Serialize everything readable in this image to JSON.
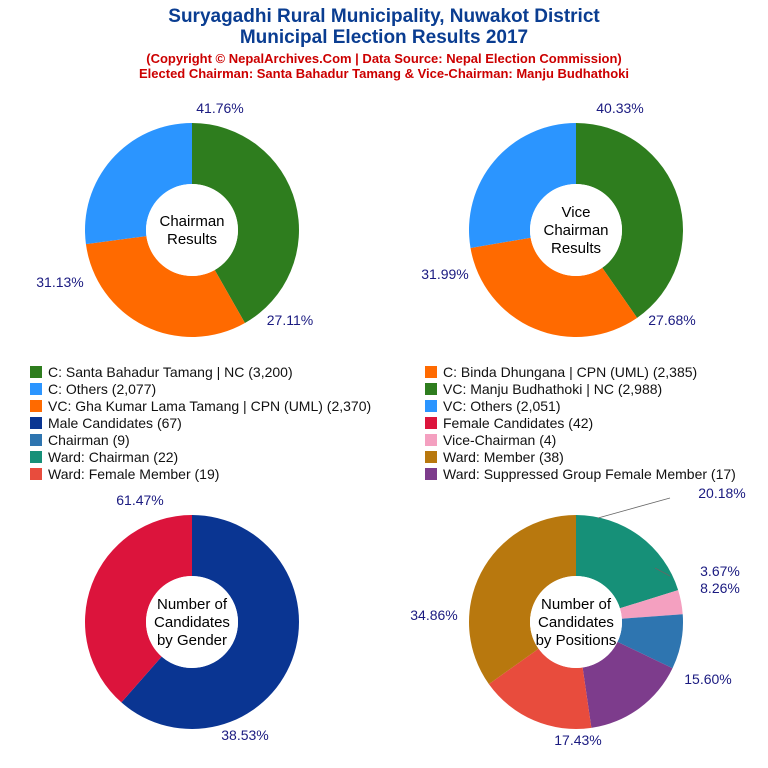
{
  "header": {
    "title1": "Suryagadhi Rural Municipality, Nuwakot District",
    "title2": "Municipal Election Results 2017",
    "sub1": "(Copyright © NepalArchives.Com | Data Source: Nepal Election Commission)",
    "sub2": "Elected Chairman: Santa Bahadur Tamang & Vice-Chairman: Manju Budhathoki"
  },
  "legend": [
    {
      "label": "C: Santa Bahadur Tamang | NC (3,200)",
      "color": "#2e7d1e"
    },
    {
      "label": "C: Binda Dhungana | CPN (UML) (2,385)",
      "color": "#ff6a00"
    },
    {
      "label": "C: Others (2,077)",
      "color": "#2b95ff"
    },
    {
      "label": "VC: Manju Budhathoki | NC (2,988)",
      "color": "#2e7d1e"
    },
    {
      "label": "VC: Gha Kumar Lama Tamang | CPN (UML) (2,370)",
      "color": "#ff6a00"
    },
    {
      "label": "VC: Others (2,051)",
      "color": "#2b95ff"
    },
    {
      "label": "Male Candidates (67)",
      "color": "#0a3592"
    },
    {
      "label": "Female Candidates (42)",
      "color": "#dc143c"
    },
    {
      "label": "Chairman (9)",
      "color": "#2e75b0"
    },
    {
      "label": "Vice-Chairman (4)",
      "color": "#f4a0c0"
    },
    {
      "label": "Ward: Chairman (22)",
      "color": "#169078"
    },
    {
      "label": "Ward: Member (38)",
      "color": "#b8780e"
    },
    {
      "label": "Ward: Female Member (19)",
      "color": "#e84c3d"
    },
    {
      "label": "Ward: Suppressed Group Female Member (17)",
      "color": "#7d3c8c"
    }
  ],
  "chart_data": [
    {
      "type": "pie",
      "center_label": [
        "Chairman",
        "Results"
      ],
      "categories": [
        "C: Santa Bahadur Tamang | NC",
        "C: Binda Dhungana | CPN (UML)",
        "C: Others"
      ],
      "values": [
        3200,
        2385,
        2077
      ],
      "percent_labels": [
        "41.76%",
        "31.13%",
        "27.11%"
      ],
      "colors": [
        "#2e7d1e",
        "#ff6a00",
        "#2b95ff"
      ]
    },
    {
      "type": "pie",
      "center_label": [
        "Vice",
        "Chairman",
        "Results"
      ],
      "categories": [
        "VC: Manju Budhathoki | NC",
        "VC: Gha Kumar Lama Tamang | CPN (UML)",
        "VC: Others"
      ],
      "values": [
        2988,
        2370,
        2051
      ],
      "percent_labels": [
        "40.33%",
        "31.99%",
        "27.68%"
      ],
      "colors": [
        "#2e7d1e",
        "#ff6a00",
        "#2b95ff"
      ]
    },
    {
      "type": "pie",
      "center_label": [
        "Number of",
        "Candidates",
        "by Gender"
      ],
      "categories": [
        "Male Candidates",
        "Female Candidates"
      ],
      "values": [
        67,
        42
      ],
      "percent_labels": [
        "61.47%",
        "38.53%"
      ],
      "colors": [
        "#0a3592",
        "#dc143c"
      ]
    },
    {
      "type": "pie",
      "center_label": [
        "Number of",
        "Candidates",
        "by Positions"
      ],
      "categories": [
        "Ward: Chairman",
        "Vice-Chairman",
        "Chairman",
        "Ward: Suppressed Group Female Member",
        "Ward: Female Member",
        "Ward: Member"
      ],
      "values": [
        22,
        4,
        9,
        17,
        19,
        38
      ],
      "percent_labels": [
        "20.18%",
        "3.67%",
        "8.26%",
        "15.60%",
        "17.43%",
        "34.86%"
      ],
      "colors": [
        "#169078",
        "#f4a0c0",
        "#2e75b0",
        "#7d3c8c",
        "#e84c3d",
        "#b8780e"
      ]
    }
  ]
}
